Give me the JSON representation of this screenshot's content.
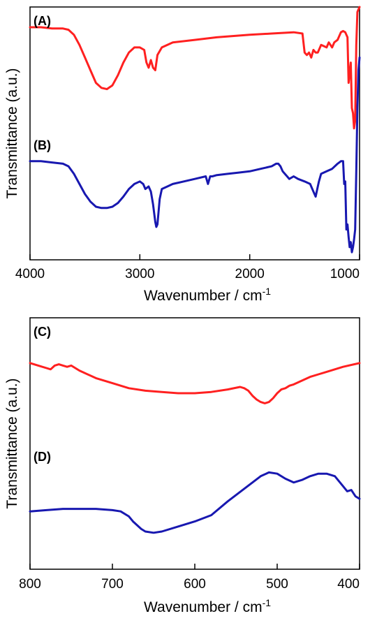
{
  "chart_data": [
    {
      "type": "line",
      "xlabel": "Wavenumber / cm",
      "xlabel_sup": "-1",
      "ylabel": "Transmittance (a.u.)",
      "xlim": [
        4000,
        1000
      ],
      "x_reversed": true,
      "xticks": [
        4000,
        3000,
        2000,
        1000
      ],
      "y_units": "arbitrary (offset traces, 0 = bottom of frame, 100 = top)",
      "ylim": [
        0,
        100
      ],
      "grid": false,
      "series": [
        {
          "name": "(A)",
          "color": "#ff2020",
          "x": [
            4000,
            3900,
            3800,
            3700,
            3650,
            3600,
            3550,
            3500,
            3450,
            3400,
            3350,
            3300,
            3250,
            3200,
            3150,
            3100,
            3050,
            3000,
            2960,
            2940,
            2920,
            2900,
            2880,
            2860,
            2840,
            2800,
            2700,
            2500,
            2300,
            2000,
            1800,
            1600,
            1520,
            1500,
            1480,
            1460,
            1440,
            1420,
            1400,
            1380,
            1350,
            1300,
            1280,
            1250,
            1230,
            1200,
            1170,
            1150,
            1130,
            1110,
            1100,
            1090,
            1080,
            1070,
            1060,
            1050,
            1040,
            1030,
            1020,
            1010,
            1000
          ],
          "y": [
            92,
            92,
            91.5,
            91.5,
            91,
            89,
            85,
            80,
            75,
            70,
            68,
            67.5,
            69,
            73,
            78,
            82,
            84,
            84,
            83,
            78,
            76,
            79,
            76,
            75,
            81,
            84,
            86,
            87,
            88,
            89,
            89.5,
            90,
            89.5,
            82,
            81,
            82,
            80,
            83,
            82,
            82,
            85,
            84,
            86,
            84,
            86,
            87,
            90,
            90.5,
            90,
            88,
            70,
            74,
            78,
            60,
            58,
            52,
            55,
            85,
            98,
            99,
            100
          ]
        },
        {
          "name": "(B)",
          "color": "#1818b0",
          "x": [
            4000,
            3900,
            3800,
            3700,
            3650,
            3600,
            3550,
            3500,
            3450,
            3400,
            3350,
            3300,
            3250,
            3200,
            3150,
            3100,
            3050,
            3000,
            2970,
            2950,
            2920,
            2900,
            2880,
            2860,
            2850,
            2840,
            2820,
            2800,
            2750,
            2700,
            2600,
            2500,
            2400,
            2380,
            2360,
            2340,
            2300,
            2200,
            2100,
            2000,
            1900,
            1800,
            1760,
            1740,
            1720,
            1700,
            1680,
            1660,
            1640,
            1600,
            1560,
            1500,
            1450,
            1420,
            1400,
            1380,
            1370,
            1350,
            1300,
            1250,
            1200,
            1170,
            1150,
            1140,
            1130,
            1120,
            1110,
            1100,
            1090,
            1080,
            1070,
            1060,
            1050,
            1040,
            1030,
            1020,
            1010,
            1000
          ],
          "y": [
            39,
            39,
            38.5,
            38,
            37,
            34,
            30,
            26,
            23,
            21,
            20.5,
            20.5,
            21,
            22.5,
            25,
            28,
            30,
            31,
            30,
            28,
            29,
            27,
            22,
            15,
            13,
            14,
            24,
            28,
            29,
            30,
            31,
            32,
            33,
            30,
            33,
            33,
            33.5,
            34,
            34.5,
            35,
            36,
            37,
            38,
            38,
            37,
            35,
            34,
            33,
            32,
            33,
            32,
            31,
            30,
            27,
            25,
            29,
            31,
            34,
            35,
            36,
            38,
            39,
            39,
            30,
            31,
            12,
            14,
            9,
            5,
            7,
            3,
            5,
            8,
            12,
            35,
            60,
            75,
            80
          ]
        }
      ]
    },
    {
      "type": "line",
      "xlabel": "Wavenumber / cm",
      "xlabel_sup": "-1",
      "ylabel": "Transmittance (a.u.)",
      "xlim": [
        800,
        400
      ],
      "x_reversed": true,
      "xticks": [
        800,
        700,
        600,
        500,
        400
      ],
      "y_units": "arbitrary (offset traces, 0 = bottom of frame, 100 = top)",
      "ylim": [
        0,
        100
      ],
      "grid": false,
      "series": [
        {
          "name": "(C)",
          "color": "#ff2020",
          "x": [
            800,
            790,
            780,
            775,
            770,
            765,
            760,
            755,
            750,
            745,
            740,
            720,
            700,
            680,
            660,
            640,
            620,
            600,
            580,
            560,
            545,
            540,
            535,
            530,
            525,
            520,
            515,
            510,
            505,
            500,
            495,
            490,
            485,
            480,
            470,
            460,
            450,
            440,
            420,
            400
          ],
          "y": [
            82,
            81,
            80,
            79.5,
            81,
            81.5,
            81,
            80.5,
            81,
            80,
            79,
            76,
            74,
            72,
            71,
            70.5,
            70,
            70,
            70.5,
            71.5,
            72.5,
            72,
            71,
            69,
            67.5,
            66.5,
            66,
            66.5,
            68,
            70,
            71.5,
            72,
            73,
            73.5,
            75,
            76.5,
            77.5,
            78.5,
            80.5,
            82
          ]
        },
        {
          "name": "(D)",
          "color": "#1818b0",
          "x": [
            800,
            780,
            760,
            740,
            720,
            700,
            690,
            680,
            675,
            670,
            665,
            660,
            650,
            640,
            620,
            600,
            580,
            560,
            540,
            520,
            510,
            500,
            490,
            480,
            470,
            460,
            450,
            440,
            430,
            420,
            415,
            410,
            405,
            400
          ],
          "y": [
            23,
            23.5,
            24,
            24,
            24,
            23.5,
            23,
            21,
            19,
            17.5,
            16,
            15,
            14.5,
            15,
            17,
            19,
            21.5,
            27,
            32,
            37,
            38.5,
            38,
            36,
            34.5,
            35.5,
            37,
            38,
            38,
            37,
            33,
            31,
            31.5,
            29,
            28
          ]
        }
      ]
    }
  ],
  "panels": {
    "A": "(A)",
    "B": "(B)",
    "C": "(C)",
    "D": "(D)"
  },
  "top_plot": {
    "ticks": [
      "4000",
      "3000",
      "2000",
      "1000"
    ],
    "xlabel": "Wavenumber / cm",
    "xlabel_sup": "-1",
    "ylabel": "Transmittance (a.u.)"
  },
  "bottom_plot": {
    "ticks": [
      "800",
      "700",
      "600",
      "500",
      "400"
    ],
    "xlabel": "Wavenumber / cm",
    "xlabel_sup": "-1",
    "ylabel": "Transmittance (a.u.)"
  }
}
